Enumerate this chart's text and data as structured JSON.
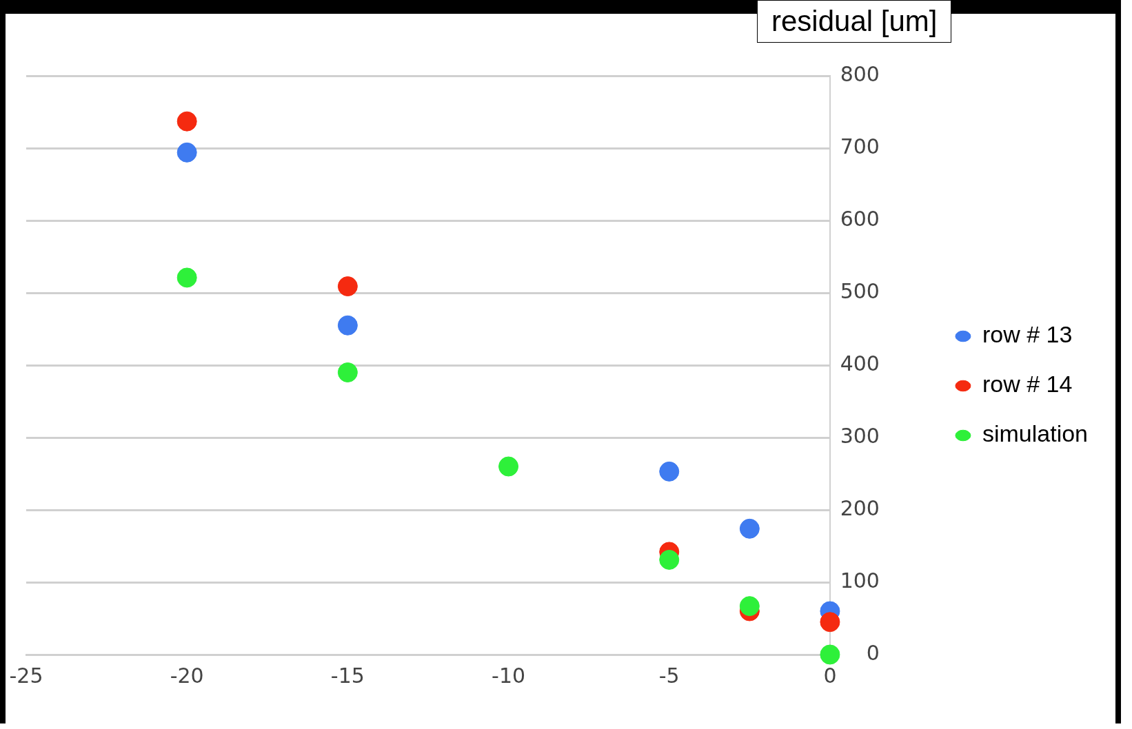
{
  "chart_data": {
    "type": "scatter",
    "ylabel": "residual [um]",
    "series": [
      {
        "name": "row # 13",
        "color": "#3f7bf0",
        "x": [
          -20,
          -15,
          -5,
          -2.5,
          0
        ],
        "values": [
          694,
          455,
          253,
          174,
          60
        ]
      },
      {
        "name": "row # 14",
        "color": "#f52a10",
        "x": [
          -20,
          -15,
          -5,
          -2.5,
          0
        ],
        "values": [
          737,
          509,
          142,
          60,
          45
        ]
      },
      {
        "name": "simulation",
        "color": "#2ef03a",
        "x": [
          -20,
          -15,
          -10,
          -5,
          -2.5,
          0
        ],
        "values": [
          521,
          390,
          260,
          131,
          67,
          0
        ]
      }
    ],
    "xlim": [
      -25,
      0
    ],
    "xticks": [
      -25,
      -20,
      -15,
      -10,
      -5,
      0
    ],
    "ylim": [
      0,
      800
    ],
    "yticks": [
      0,
      100,
      200,
      300,
      400,
      500,
      600,
      700,
      800
    ],
    "grid": "y",
    "legend": "right",
    "marker": "circle"
  }
}
